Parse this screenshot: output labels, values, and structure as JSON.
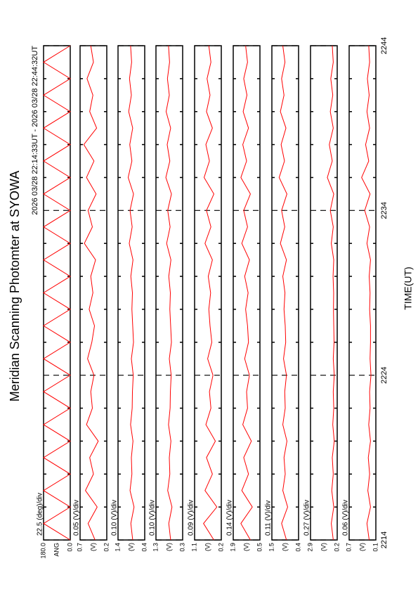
{
  "chart_data": {
    "type": "line",
    "title": "Meridian Scanning Photomter at SYOWA",
    "subtitle": "2026 03/28 22:14:33UT - 2026 03/28 22:44:32UT",
    "x_label": "TIME(UT)",
    "x": [
      2214,
      2215,
      2216,
      2217,
      2218,
      2219,
      2220,
      2221,
      2222,
      2223,
      2224,
      2225,
      2226,
      2227,
      2228,
      2229,
      2230,
      2231,
      2232,
      2233,
      2234,
      2235,
      2236,
      2237,
      2238,
      2239,
      2240,
      2241,
      2242,
      2243,
      2244
    ],
    "xlim": [
      2214,
      2244
    ],
    "xticks": [
      2214,
      2224,
      2234,
      2244
    ],
    "xminorticks": [
      2216,
      2218,
      2220,
      2222,
      2226,
      2228,
      2230,
      2232,
      2236,
      2238,
      2240,
      2242
    ],
    "color": "#ff0000",
    "panels": [
      {
        "label": "ANG",
        "div_label": "22.5 (deg)/div",
        "ylim": [
          0,
          180
        ],
        "yticks": [
          {
            "value": 0,
            "label": "0.0"
          },
          {
            "value": 180,
            "label": "180.0"
          }
        ],
        "values": [
          0,
          180,
          0,
          180,
          0,
          180,
          0,
          180,
          0,
          180,
          0,
          180,
          0,
          180,
          0,
          180,
          0,
          180,
          0,
          180,
          0,
          180,
          0,
          180,
          0,
          180,
          0,
          180,
          0,
          180,
          0
        ]
      },
      {
        "label": "(V)",
        "div_label": "0.05 (V)/div",
        "ylim": [
          0.2,
          0.7
        ],
        "yticks": [
          0.2,
          0.7
        ],
        "values": [
          0.42,
          0.55,
          0.38,
          0.6,
          0.45,
          0.52,
          0.36,
          0.58,
          0.47,
          0.5,
          0.44,
          0.56,
          0.48,
          0.43,
          0.53,
          0.46,
          0.5,
          0.41,
          0.62,
          0.47,
          0.55,
          0.4,
          0.58,
          0.44,
          0.63,
          0.39,
          0.52,
          0.46,
          0.57,
          0.45,
          0.5
        ]
      },
      {
        "label": "(V)",
        "div_label": "0.10 (V)/div",
        "ylim": [
          0.4,
          1.4
        ],
        "yticks": [
          0.4,
          1.4
        ],
        "values": [
          0.85,
          0.92,
          0.8,
          0.95,
          0.88,
          0.9,
          0.84,
          0.93,
          0.87,
          0.86,
          0.83,
          0.9,
          0.82,
          0.85,
          0.88,
          0.86,
          0.92,
          0.84,
          0.98,
          0.87,
          0.95,
          0.82,
          1.02,
          0.88,
          0.96,
          0.85,
          1.0,
          0.9,
          0.97,
          0.89,
          0.93
        ]
      },
      {
        "label": "(V)",
        "div_label": "0.10 (V)/div",
        "ylim": [
          0.3,
          1.3
        ],
        "yticks": [
          0.3,
          1.3
        ],
        "values": [
          0.75,
          0.82,
          0.7,
          0.86,
          0.78,
          0.8,
          0.74,
          0.83,
          0.77,
          0.76,
          0.73,
          0.8,
          0.72,
          0.75,
          0.78,
          0.76,
          0.82,
          0.74,
          0.9,
          0.77,
          0.86,
          0.72,
          0.93,
          0.78,
          0.88,
          0.75,
          0.92,
          0.8,
          0.87,
          0.79,
          0.83
        ]
      },
      {
        "label": "(V)",
        "div_label": "0.09 (V)/div",
        "ylim": [
          0.2,
          1.1
        ],
        "yticks": [
          0.2,
          1.1
        ],
        "values": [
          0.45,
          0.8,
          0.35,
          0.75,
          0.5,
          0.7,
          0.4,
          0.72,
          0.55,
          0.6,
          0.48,
          0.66,
          0.52,
          0.58,
          0.62,
          0.56,
          0.64,
          0.5,
          0.75,
          0.55,
          0.7,
          0.45,
          0.78,
          0.6,
          0.72,
          0.5,
          0.7,
          0.58,
          0.68,
          0.55,
          0.62
        ]
      },
      {
        "label": "(V)",
        "div_label": "0.14 (V)/div",
        "ylim": [
          0.5,
          1.9
        ],
        "yticks": [
          0.5,
          1.9
        ],
        "values": [
          1.0,
          1.5,
          0.9,
          1.45,
          1.1,
          1.35,
          0.95,
          1.4,
          1.15,
          1.2,
          1.05,
          1.3,
          1.1,
          1.15,
          1.25,
          1.12,
          1.3,
          1.05,
          1.45,
          1.15,
          1.35,
          1.0,
          1.5,
          1.2,
          1.4,
          1.1,
          1.38,
          1.18,
          1.35,
          1.15,
          1.25
        ]
      },
      {
        "label": "(V)",
        "div_label": "0.11 (V)/div",
        "ylim": [
          0.4,
          1.5
        ],
        "yticks": [
          0.4,
          1.5
        ],
        "values": [
          0.9,
          1.1,
          0.85,
          1.05,
          0.95,
          1.0,
          0.88,
          1.05,
          0.95,
          0.97,
          0.9,
          1.02,
          0.93,
          0.95,
          1.0,
          0.96,
          1.05,
          0.9,
          1.15,
          0.97,
          1.1,
          0.88,
          1.2,
          0.98,
          1.12,
          0.92,
          1.15,
          1.0,
          1.1,
          0.96,
          1.05
        ]
      },
      {
        "label": "(V)",
        "div_label": "0.27 (V)/div",
        "ylim": [
          0.2,
          2.9
        ],
        "yticks": [
          0.2,
          2.9
        ],
        "values": [
          0.6,
          0.8,
          0.55,
          0.75,
          0.6,
          0.7,
          0.5,
          0.65,
          0.55,
          0.6,
          0.5,
          0.6,
          0.52,
          0.55,
          0.58,
          0.56,
          0.62,
          0.55,
          0.8,
          0.6,
          0.9,
          0.55,
          1.2,
          0.7,
          1.0,
          0.6,
          0.9,
          0.65,
          0.85,
          0.6,
          0.7
        ]
      },
      {
        "label": "(V)",
        "div_label": "0.06 (V)/div",
        "ylim": [
          0.1,
          0.7
        ],
        "yticks": [
          0.1,
          0.7
        ],
        "values": [
          0.25,
          0.3,
          0.22,
          0.28,
          0.24,
          0.27,
          0.22,
          0.26,
          0.23,
          0.24,
          0.21,
          0.23,
          0.22,
          0.22,
          0.24,
          0.23,
          0.25,
          0.22,
          0.3,
          0.24,
          0.35,
          0.23,
          0.42,
          0.26,
          0.33,
          0.24,
          0.3,
          0.25,
          0.29,
          0.24,
          0.26
        ]
      }
    ]
  }
}
